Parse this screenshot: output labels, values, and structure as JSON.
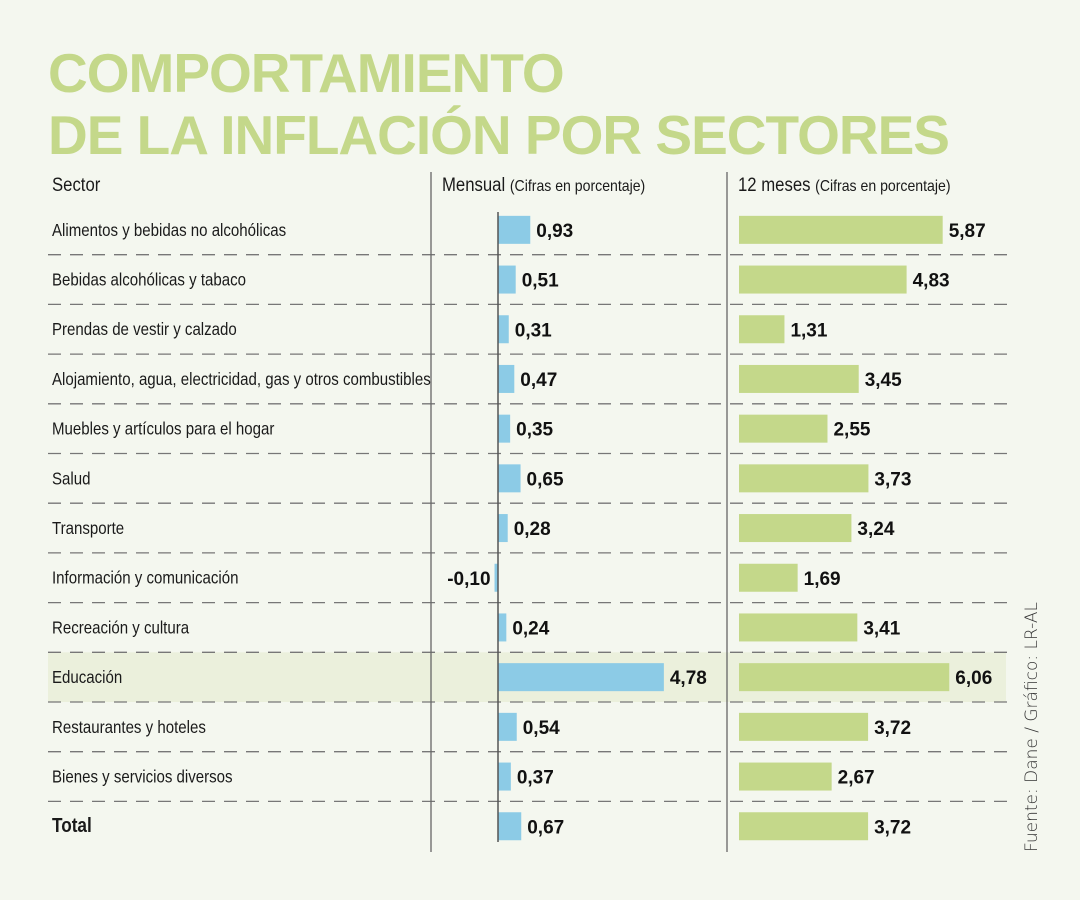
{
  "title_lines": [
    "COMPORTAMIENTO",
    "DE LA INFLACIÓN POR SECTORES"
  ],
  "headers": {
    "sector": "Sector",
    "monthly": "Mensual",
    "monthly_sub": "(Cifras en porcentaje)",
    "yearly": "12 meses",
    "yearly_sub": "(Cifras en porcentaje)"
  },
  "source": "Fuente: Dane / Gráfico: LR-AL",
  "colors": {
    "title": "#c4d88a",
    "monthly_bar": "#8ccbe6",
    "yearly_bar": "#c4d88a",
    "highlight_row": "#ebf0dc",
    "background": "#f4f7ef"
  },
  "chart_data": {
    "type": "bar",
    "orientation": "horizontal",
    "title": "COMPORTAMIENTO DE LA INFLACIÓN POR SECTORES",
    "categories": [
      "Alimentos y bebidas no alcohólicas",
      "Bebidas alcohólicas y tabaco",
      "Prendas de vestir y calzado",
      "Alojamiento, agua, electricidad, gas y otros combustibles",
      "Muebles y artículos para el hogar",
      "Salud",
      "Transporte",
      "Información y comunicación",
      "Recreación y cultura",
      "Educación",
      "Restaurantes y hoteles",
      "Bienes y servicios diversos",
      "Total"
    ],
    "highlighted_category": "Educación",
    "bold_category": "Total",
    "series": [
      {
        "name": "Mensual (Cifras en porcentaje)",
        "values": [
          0.93,
          0.51,
          0.31,
          0.47,
          0.35,
          0.65,
          0.28,
          -0.1,
          0.24,
          4.78,
          0.54,
          0.37,
          0.67
        ],
        "labels": [
          "0,93",
          "0,51",
          "0,31",
          "0,47",
          "0,35",
          "0,65",
          "0,28",
          "-0,10",
          "0,24",
          "4,78",
          "0,54",
          "0,37",
          "0,67"
        ]
      },
      {
        "name": "12 meses (Cifras en porcentaje)",
        "values": [
          5.87,
          4.83,
          1.31,
          3.45,
          2.55,
          3.73,
          3.24,
          1.69,
          3.41,
          6.06,
          3.72,
          2.67,
          3.72
        ],
        "labels": [
          "5,87",
          "4,83",
          "1,31",
          "3,45",
          "2,55",
          "3,73",
          "3,24",
          "1,69",
          "3,41",
          "6,06",
          "3,72",
          "2,67",
          "3,72"
        ]
      }
    ],
    "xlabel": "",
    "ylabel": "",
    "grid": false,
    "legend": "none"
  }
}
